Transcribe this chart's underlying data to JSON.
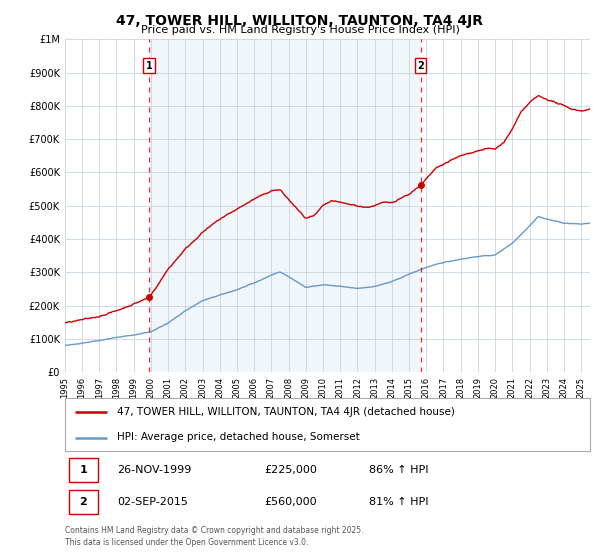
{
  "title": "47, TOWER HILL, WILLITON, TAUNTON, TA4 4JR",
  "subtitle": "Price paid vs. HM Land Registry's House Price Index (HPI)",
  "background_color": "#ffffff",
  "plot_bg_color": "#e8f0f8",
  "grid_color": "#c8d4e0",
  "red_color": "#cc0000",
  "blue_color": "#6699cc",
  "marker1_year": 1999.9,
  "marker2_year": 2015.67,
  "marker1_value": 225000,
  "marker2_value": 560000,
  "legend_label_red": "47, TOWER HILL, WILLITON, TAUNTON, TA4 4JR (detached house)",
  "legend_label_blue": "HPI: Average price, detached house, Somerset",
  "note1_date": "26-NOV-1999",
  "note1_price": "£225,000",
  "note1_hpi": "86% ↑ HPI",
  "note2_date": "02-SEP-2015",
  "note2_price": "£560,000",
  "note2_hpi": "81% ↑ HPI",
  "footer": "Contains HM Land Registry data © Crown copyright and database right 2025.\nThis data is licensed under the Open Government Licence v3.0.",
  "ylim_top": 1000000,
  "ylim_bottom": 0,
  "xmin": 1995,
  "xmax": 2025.5
}
